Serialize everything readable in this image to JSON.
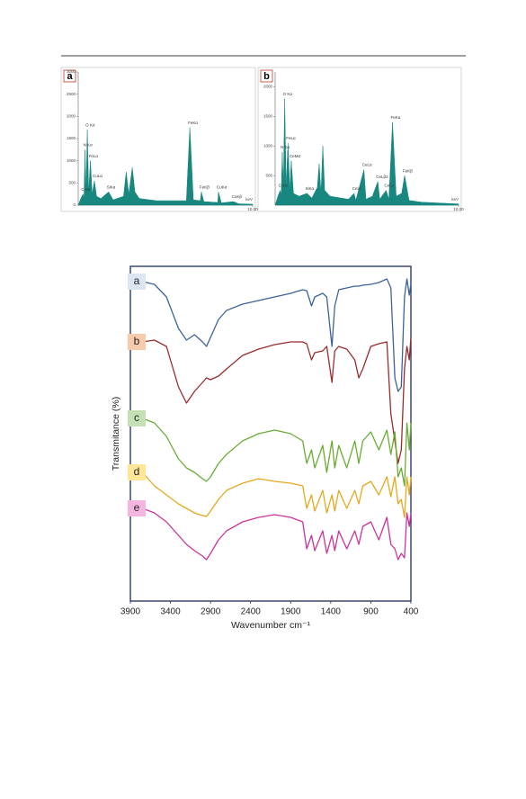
{
  "chart_data": [
    {
      "type": "area",
      "panel": "a",
      "color": "#17877f",
      "xlabel": "keV",
      "x": [
        0,
        0.15,
        0.28,
        0.33,
        0.39,
        0.45,
        0.52,
        0.6,
        0.7,
        0.8,
        0.93,
        1.05,
        1.3,
        1.74,
        2.0,
        2.6,
        2.75,
        2.9,
        3.1,
        3.25,
        3.5,
        4.5,
        6.2,
        6.4,
        6.6,
        7.0,
        7.06,
        7.2,
        8.0,
        8.04,
        8.2,
        8.9,
        9.2,
        10
      ],
      "values": [
        0,
        150,
        250,
        150,
        1250,
        300,
        1700,
        300,
        1000,
        250,
        550,
        200,
        150,
        300,
        120,
        200,
        750,
        250,
        850,
        300,
        150,
        100,
        100,
        1750,
        120,
        100,
        300,
        80,
        60,
        300,
        50,
        80,
        30,
        20
      ],
      "xlim": [
        0,
        10
      ],
      "xticks": [
        {
          "value": 10,
          "label": "10.00"
        }
      ],
      "ylim": [
        0,
        3000
      ],
      "yticks": [
        0,
        500,
        1000,
        1500,
        2000,
        2500,
        3000
      ],
      "annotations": [
        {
          "text": "C Kα",
          "x": 0.28
        },
        {
          "text": "N Kα",
          "x": 0.39
        },
        {
          "text": "O Kα",
          "x": 0.52
        },
        {
          "text": "FeLα",
          "x": 0.7
        },
        {
          "text": "CuLα",
          "x": 0.93
        },
        {
          "text": "SiKα",
          "x": 1.74
        },
        {
          "text": "FeKα",
          "x": 6.4
        },
        {
          "text": "FeKβ",
          "x": 7.06
        },
        {
          "text": "CuKα",
          "x": 8.04
        },
        {
          "text": "CuKβ",
          "x": 8.9
        }
      ]
    },
    {
      "type": "area",
      "panel": "b",
      "color": "#17877f",
      "xlabel": "keV",
      "x": [
        0,
        0.15,
        0.28,
        0.33,
        0.39,
        0.45,
        0.52,
        0.6,
        0.7,
        0.8,
        0.88,
        1.0,
        1.3,
        1.74,
        2.0,
        2.3,
        2.4,
        2.5,
        2.6,
        2.7,
        3.0,
        4.0,
        4.3,
        4.4,
        4.84,
        4.95,
        5.3,
        5.6,
        5.7,
        6.05,
        6.2,
        6.4,
        6.6,
        6.9,
        7.06,
        7.3,
        8,
        10
      ],
      "values": [
        0,
        150,
        250,
        150,
        900,
        300,
        1800,
        300,
        1050,
        250,
        750,
        200,
        150,
        200,
        120,
        300,
        700,
        200,
        1000,
        250,
        150,
        100,
        200,
        80,
        600,
        100,
        150,
        400,
        100,
        250,
        100,
        1400,
        150,
        200,
        500,
        80,
        50,
        20
      ],
      "xlim": [
        0,
        10
      ],
      "xticks": [
        {
          "value": 10,
          "label": "10.00"
        }
      ],
      "ylim": [
        0,
        2250
      ],
      "yticks": [
        500,
        1000,
        1500,
        2000
      ],
      "annotations": [
        {
          "text": "C Kα",
          "x": 0.28
        },
        {
          "text": "N Kα",
          "x": 0.39
        },
        {
          "text": "O Kα",
          "x": 0.52
        },
        {
          "text": "FeLα",
          "x": 0.7
        },
        {
          "text": "CeMα",
          "x": 0.88
        },
        {
          "text": "SiKα",
          "x": 1.74
        },
        {
          "text": "CeLl",
          "x": 4.3
        },
        {
          "text": "CeLα",
          "x": 4.84
        },
        {
          "text": "CeLβ2",
          "x": 5.6
        },
        {
          "text": "CeLγ",
          "x": 6.05
        },
        {
          "text": "FeKα",
          "x": 6.4
        },
        {
          "text": "FeKβ",
          "x": 7.06
        }
      ]
    },
    {
      "type": "line",
      "xlabel": "Wavenumber cm⁻¹",
      "ylabel": "Transmitance (%)",
      "x": [
        3750,
        3600,
        3450,
        3300,
        3200,
        3100,
        3000,
        2950,
        2900,
        2800,
        2700,
        2500,
        2300,
        2100,
        1900,
        1750,
        1700,
        1640,
        1600,
        1500,
        1450,
        1385,
        1350,
        1300,
        1200,
        1100,
        1050,
        1000,
        900,
        800,
        700,
        650,
        600,
        560,
        520,
        480,
        450,
        420,
        400
      ],
      "xlim": [
        3900,
        400
      ],
      "xticks": [
        3900,
        3400,
        2900,
        2400,
        1900,
        1400,
        900,
        400
      ],
      "ylim": [
        0,
        372
      ],
      "series": [
        {
          "name": "a",
          "color": "#3b6399",
          "label_fill": "#dce6f2",
          "values": [
            355,
            352,
            338,
            303,
            290,
            296,
            288,
            283,
            293,
            313,
            323,
            330,
            334,
            338,
            342,
            346,
            345,
            328,
            338,
            342,
            338,
            283,
            328,
            346,
            348,
            350,
            350,
            351,
            352,
            354,
            358,
            348,
            248,
            233,
            238,
            338,
            358,
            340,
            353
          ]
        },
        {
          "name": "b",
          "color": "#9a2b2b",
          "label_fill": "#f8cbad",
          "values": [
            288,
            290,
            283,
            238,
            220,
            233,
            243,
            248,
            246,
            250,
            258,
            273,
            280,
            285,
            288,
            288,
            286,
            268,
            276,
            278,
            283,
            243,
            278,
            283,
            280,
            268,
            248,
            258,
            283,
            286,
            288,
            208,
            178,
            153,
            168,
            258,
            283,
            268,
            293
          ]
        },
        {
          "name": "c",
          "color": "#6aab35",
          "label_fill": "#c5e0b4",
          "values": [
            203,
            198,
            183,
            158,
            148,
            143,
            136,
            133,
            138,
            153,
            163,
            178,
            186,
            190,
            186,
            178,
            153,
            168,
            148,
            173,
            143,
            178,
            148,
            173,
            148,
            178,
            153,
            178,
            188,
            168,
            190,
            163,
            188,
            138,
            148,
            128,
            198,
            168,
            198
          ]
        },
        {
          "name": "d",
          "color": "#e3a91e",
          "label_fill": "#ffe699",
          "values": [
            143,
            128,
            118,
            108,
            103,
            98,
            95,
            94,
            100,
            113,
            123,
            131,
            136,
            133,
            131,
            128,
            103,
            118,
            100,
            123,
            98,
            118,
            100,
            123,
            103,
            123,
            108,
            128,
            133,
            118,
            138,
            116,
            138,
            108,
            113,
            93,
            138,
            118,
            138
          ]
        },
        {
          "name": "e",
          "color": "#cc3399",
          "label_fill": "#f4b6e0",
          "values": [
            103,
            98,
            88,
            73,
            63,
            56,
            50,
            46,
            53,
            68,
            78,
            88,
            93,
            96,
            93,
            88,
            58,
            73,
            56,
            78,
            53,
            73,
            56,
            78,
            58,
            78,
            63,
            83,
            88,
            68,
            93,
            63,
            58,
            46,
            53,
            48,
            98,
            83,
            98
          ]
        }
      ]
    }
  ]
}
